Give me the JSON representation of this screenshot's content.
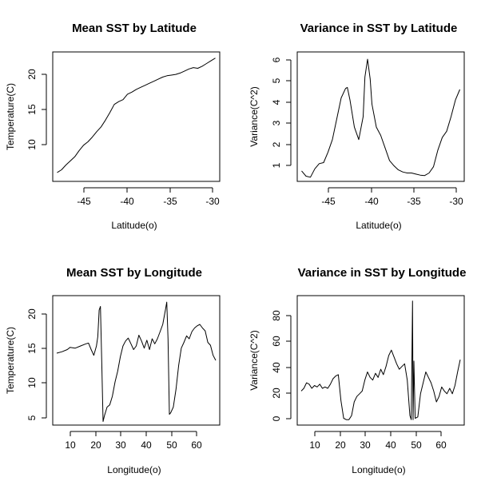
{
  "chart_data": [
    {
      "type": "line",
      "title": "Mean SST by Latitude",
      "xlabel": "Latitude(o)",
      "ylabel": "Temperature(C)",
      "xlim": [
        -48.5,
        -29.5
      ],
      "ylim": [
        4.5,
        23.5
      ],
      "xticks": [
        -45,
        -40,
        -35,
        -30
      ],
      "yticks": [
        10,
        15,
        20
      ],
      "series": [
        {
          "x": [
            -48,
            -47.5,
            -47,
            -46.5,
            -46,
            -45.5,
            -45,
            -44.5,
            -44,
            -43.5,
            -43,
            -42.5,
            -42,
            -41.5,
            -41,
            -40.5,
            -40,
            -39.5,
            -39,
            -38.5,
            -38,
            -37.5,
            -37,
            -36.5,
            -36,
            -35.5,
            -35,
            -34.5,
            -34,
            -33.5,
            -33,
            -32.5,
            -32,
            -31.5,
            -31,
            -30.5,
            -30
          ],
          "y": [
            5.8,
            6.2,
            6.9,
            7.5,
            8.1,
            9.0,
            9.8,
            10.3,
            11.0,
            11.8,
            12.5,
            13.5,
            14.6,
            15.8,
            16.2,
            16.5,
            17.3,
            17.6,
            18.0,
            18.3,
            18.6,
            18.9,
            19.2,
            19.5,
            19.8,
            20.0,
            20.1,
            20.2,
            20.4,
            20.7,
            21.0,
            21.2,
            21.1,
            21.4,
            21.8,
            22.2,
            22.6
          ]
        }
      ]
    },
    {
      "type": "line",
      "title": "Variance in SST by Latitude",
      "xlabel": "Latitude(o)",
      "ylabel": "Variance(C^2)",
      "xlim": [
        -48.5,
        -29.5
      ],
      "ylim": [
        0.3,
        6.5
      ],
      "xticks": [
        -45,
        -40,
        -35,
        -30
      ],
      "yticks": [
        1,
        2,
        3,
        4,
        5,
        6
      ],
      "series": [
        {
          "x": [
            -48,
            -47.5,
            -47,
            -46.5,
            -46,
            -45.5,
            -45,
            -44.5,
            -44,
            -43.5,
            -43,
            -42.8,
            -42.5,
            -42,
            -41.5,
            -41,
            -40.8,
            -40.5,
            -40.2,
            -40,
            -39.5,
            -39,
            -38.5,
            -38,
            -37.5,
            -37,
            -36.5,
            -36,
            -35.5,
            -35,
            -34.5,
            -34,
            -33.5,
            -33,
            -32.5,
            -32,
            -31.5,
            -31,
            -30.5,
            -30
          ],
          "y": [
            0.8,
            0.55,
            0.5,
            0.9,
            1.15,
            1.2,
            1.7,
            2.3,
            3.3,
            4.3,
            4.75,
            4.8,
            4.2,
            2.9,
            2.3,
            3.4,
            5.3,
            6.15,
            5.2,
            4.0,
            2.9,
            2.5,
            1.9,
            1.3,
            1.05,
            0.85,
            0.75,
            0.7,
            0.7,
            0.65,
            0.6,
            0.58,
            0.7,
            1.0,
            1.8,
            2.4,
            2.7,
            3.4,
            4.2,
            4.7
          ]
        }
      ]
    },
    {
      "type": "line",
      "title": "Mean SST by Longitude",
      "xlabel": "Longitude(o)",
      "ylabel": "Temperature(C)",
      "xlim": [
        3.5,
        66.5
      ],
      "ylim": [
        4.5,
        22.5
      ],
      "xticks": [
        10,
        20,
        30,
        40,
        50,
        60
      ],
      "yticks": [
        5,
        10,
        15,
        20
      ],
      "series": [
        {
          "x": [
            5,
            7,
            9,
            10,
            12,
            14,
            16,
            17,
            18,
            19,
            20,
            20.5,
            21,
            21.5,
            22,
            22.5,
            23,
            24,
            25,
            26,
            27,
            28,
            29,
            30,
            31,
            32,
            33,
            34,
            35,
            36,
            37,
            38,
            39,
            40,
            41,
            42,
            43,
            44,
            45,
            46,
            46.5,
            47,
            47.5,
            48,
            49,
            50,
            51,
            52,
            53,
            54,
            55,
            56,
            57,
            58,
            59,
            60,
            61,
            62,
            63,
            64,
            65
          ],
          "y": [
            14.5,
            14.7,
            15.0,
            15.3,
            15.2,
            15.5,
            15.8,
            15.9,
            15.0,
            14.2,
            15.5,
            16.8,
            20.5,
            21.0,
            13.0,
            5.0,
            5.8,
            7.0,
            7.3,
            8.5,
            10.5,
            12.0,
            14.0,
            15.5,
            16.2,
            16.6,
            15.8,
            15.0,
            15.5,
            17.0,
            16.2,
            15.2,
            16.3,
            15.0,
            16.5,
            15.8,
            16.5,
            17.5,
            18.5,
            20.5,
            21.6,
            16.5,
            6.0,
            6.2,
            7.0,
            9.5,
            12.8,
            15.2,
            16.0,
            16.9,
            16.5,
            17.5,
            18.0,
            18.3,
            18.5,
            18.0,
            17.6,
            16.0,
            15.6,
            14.2,
            13.5
          ]
        }
      ]
    },
    {
      "type": "line",
      "title": "Variance in SST by Longitude",
      "xlabel": "Longitude(o)",
      "ylabel": "Variance(C^2)",
      "xlim": [
        3.5,
        66.5
      ],
      "ylim": [
        -3,
        92
      ],
      "xticks": [
        10,
        20,
        30,
        40,
        50,
        60
      ],
      "yticks": [
        0,
        20,
        40,
        60,
        80
      ],
      "series": [
        {
          "x": [
            5,
            6,
            7,
            8,
            9,
            10,
            11,
            12,
            13,
            14,
            15,
            16,
            17,
            18,
            19,
            20,
            21,
            22,
            23,
            24,
            25,
            26,
            27,
            28,
            29,
            30,
            31,
            32,
            33,
            34,
            35,
            36,
            37,
            38,
            39,
            40,
            41,
            42,
            43,
            44,
            45,
            46,
            46.5,
            47,
            47.2,
            47.5,
            48,
            49,
            50,
            51,
            52,
            53,
            54,
            55,
            56,
            57,
            58,
            59,
            60,
            61,
            62,
            63,
            64,
            65
          ],
          "y": [
            22,
            24,
            28,
            27,
            24,
            26,
            25,
            27,
            24,
            25,
            24,
            27,
            31,
            33,
            34,
            15,
            2,
            1,
            1,
            4,
            14,
            18,
            20,
            22,
            30,
            36,
            32,
            30,
            35,
            32,
            38,
            34,
            40,
            48,
            52,
            47,
            42,
            38,
            40,
            42,
            30,
            4,
            1,
            88,
            1,
            44,
            2,
            3,
            20,
            28,
            36,
            32,
            28,
            22,
            14,
            18,
            25,
            22,
            20,
            24,
            20,
            26,
            36,
            45
          ]
        }
      ]
    }
  ]
}
